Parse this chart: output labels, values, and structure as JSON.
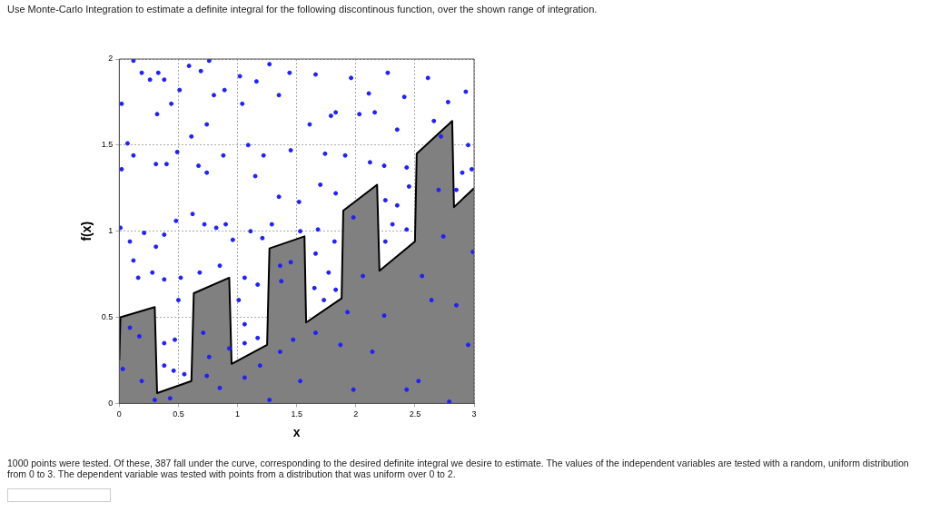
{
  "chart_data": {
    "type": "scatter",
    "title": "Use Monte-Carlo Integration to estimate a definite integral for the following discontinous function, over the shown range of integration.",
    "xlabel": "x",
    "ylabel": "f(x)",
    "annotations": [
      "1000 points were tested. Of these, 387 fall under the curve, corresponding to the desired definite integral we desire to estimate. The values of the independent variables are tested with a random, uniform distribution from 0 to 3. The dependent variable was tested with points from a distribution that was uniform over 0 to 2."
    ],
    "xlim": [
      0,
      3
    ],
    "xticks": [
      0,
      0.5,
      1,
      1.5,
      2,
      2.5,
      3
    ],
    "ylim": [
      0,
      2
    ],
    "yticks": [
      0,
      0.5,
      1,
      1.5,
      2
    ],
    "grid": true,
    "marker": "circle",
    "series": [
      {
        "type": "area",
        "color": "#808080",
        "marker": "none",
        "x": [
          0,
          0.01,
          0.3,
          0.32,
          0.61,
          0.63,
          0.93,
          0.95,
          1.25,
          1.27,
          1.566,
          1.58,
          1.88,
          1.894,
          2.18,
          2.2,
          2.5,
          2.515,
          2.815,
          2.83,
          3
        ],
        "values": [
          0.25,
          0.5,
          0.56,
          0.06,
          0.13,
          0.64,
          0.73,
          0.23,
          0.34,
          0.9,
          0.97,
          0.47,
          0.61,
          1.12,
          1.27,
          0.77,
          0.94,
          1.45,
          1.64,
          1.14,
          1.25
        ]
      },
      {
        "type": "scatter",
        "color": "#1f1fff",
        "x": [
          0.12,
          0.02,
          0.19,
          0.33,
          0.38,
          0.26,
          0.44,
          0.32,
          0.51,
          0.59,
          0.69,
          0.76,
          0.8,
          0.89,
          1.02,
          1.04,
          1.16,
          1.27,
          0.07,
          0.02,
          0.12,
          0.31,
          0.4,
          0.49,
          0.67,
          0.74,
          0.88,
          0.74,
          0.61,
          1.09,
          1.22,
          1.15,
          0.01,
          0.09,
          0.21,
          0.31,
          0.38,
          0.48,
          0.62,
          0.72,
          0.82,
          0.9,
          0.96,
          1.11,
          1.21,
          0.12,
          0.28,
          0.38,
          0.52,
          0.68,
          0.85,
          1.06,
          1.17,
          0.5,
          0.38,
          0.47,
          0.38,
          0.46,
          0.55,
          1.01,
          1.06,
          1.17,
          1.06,
          0.16,
          0.09,
          0.17,
          0.03,
          0.19,
          0.3,
          0.43,
          0.71,
          0.76,
          0.85,
          0.74,
          0.93,
          1.06,
          1.19,
          1.27,
          1.36,
          1.36,
          1.35,
          1.44,
          1.66,
          1.83,
          1.96,
          2.11,
          2.27,
          2.41,
          2.61,
          2.78,
          2.93,
          1.61,
          1.79,
          2.03,
          2.16,
          2.35,
          2.66,
          1.45,
          1.74,
          1.91,
          2.12,
          2.24,
          2.43,
          2.95,
          2.98,
          1.35,
          1.52,
          1.7,
          1.83,
          1.53,
          1.68,
          1.82,
          1.98,
          2.25,
          2.35,
          2.45,
          2.31,
          2.43,
          2.25,
          1.29,
          1.66,
          1.77,
          1.65,
          1.73,
          1.83,
          2.85,
          2.9,
          2.72,
          1.45,
          1.37,
          1.47,
          1.66,
          1.53,
          1.93,
          2.06,
          2.14,
          2.24,
          2.43,
          2.56,
          2.53,
          2.64,
          2.7,
          2.74,
          2.85,
          2.95,
          2.99,
          2.79,
          1.98,
          1.87
        ],
        "values": [
          1.99,
          1.74,
          1.92,
          1.92,
          1.88,
          1.88,
          1.74,
          1.68,
          1.82,
          1.96,
          1.93,
          1.99,
          1.79,
          1.82,
          1.9,
          1.74,
          1.87,
          1.97,
          1.51,
          1.36,
          1.44,
          1.39,
          1.39,
          1.46,
          1.38,
          1.34,
          1.44,
          1.62,
          1.55,
          1.5,
          1.44,
          1.32,
          1.02,
          0.94,
          0.99,
          0.91,
          0.98,
          1.06,
          1.1,
          1.04,
          1.02,
          1.04,
          0.95,
          1,
          0.96,
          0.83,
          0.76,
          0.72,
          0.73,
          0.76,
          0.8,
          0.73,
          0.69,
          0.6,
          0.35,
          0.37,
          0.22,
          0.19,
          0.17,
          0.6,
          0.46,
          0.38,
          0.35,
          0.73,
          0.44,
          0.39,
          0.2,
          0.13,
          0.02,
          0.03,
          0.41,
          0.27,
          0.09,
          0.16,
          0.32,
          0.15,
          0.22,
          0.02,
          0.3,
          0.8,
          1.79,
          1.92,
          1.91,
          1.69,
          1.89,
          1.8,
          1.92,
          1.78,
          1.89,
          1.75,
          1.81,
          1.62,
          1.67,
          1.68,
          1.69,
          1.59,
          1.64,
          1.47,
          1.45,
          1.44,
          1.4,
          1.38,
          1.37,
          1.5,
          1.36,
          1.2,
          1.17,
          1.27,
          1.22,
          1,
          1.01,
          0.94,
          1.08,
          1.18,
          1.15,
          1.26,
          1.04,
          1.01,
          0.94,
          1.04,
          0.87,
          0.76,
          0.67,
          0.6,
          0.66,
          1.24,
          1.34,
          1.55,
          0.82,
          0.71,
          0.37,
          0.41,
          0.13,
          0.53,
          0.74,
          0.3,
          0.51,
          0.08,
          0.74,
          0.13,
          0.6,
          1.24,
          0.97,
          0.57,
          0.34,
          0.88,
          0.01,
          0.08,
          0.34
        ]
      }
    ]
  }
}
